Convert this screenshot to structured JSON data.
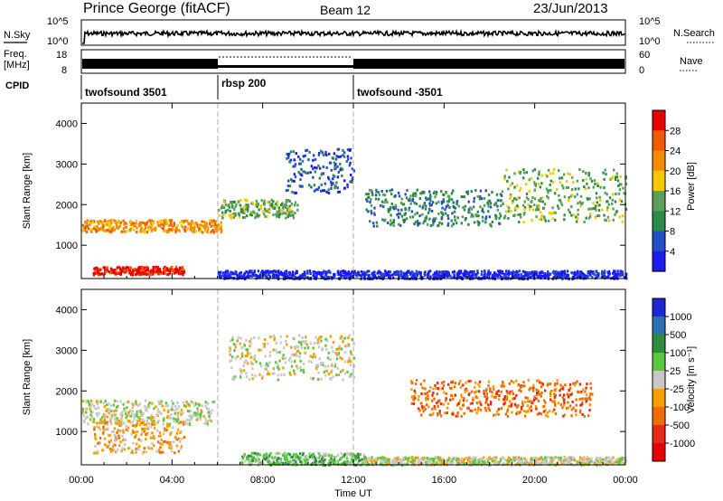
{
  "header": {
    "station": "Prince George (fitACF)",
    "beam": "Beam 12",
    "date": "23/Jun/2013"
  },
  "nsky_panel": {
    "label": "N.Sky",
    "left_ticks": [
      "10^5",
      "10^0"
    ],
    "right_ticks": [
      "10^5",
      "10^0"
    ],
    "right_label": "N.Search"
  },
  "freq_panel": {
    "label_line1": "Freq.",
    "label_line2": "[MHz]",
    "left_ticks": [
      "18",
      "8"
    ],
    "right_ticks": [
      "60",
      "0"
    ],
    "right_label": "Nave"
  },
  "cpid_panel": {
    "label": "CPID",
    "programs": [
      {
        "name": "twofsound 3501",
        "start_hour": 0
      },
      {
        "name": "rbsp 200",
        "start_hour": 6
      },
      {
        "name": "twofsound -3501",
        "start_hour": 12
      }
    ]
  },
  "chart_data": [
    {
      "type": "heatmap",
      "name": "power",
      "ylabel": "Slant Range [km]",
      "ylim": [
        180,
        4500
      ],
      "yticks": [
        "1000",
        "2000",
        "3000",
        "4000"
      ],
      "xlim_hours": [
        0,
        24
      ],
      "colorbar_label": "Power [dB]",
      "colorbar_ticks": [
        "4",
        "8",
        "12",
        "16",
        "20",
        "24",
        "28"
      ],
      "colors": [
        "#1c1cf0",
        "#2350c8",
        "#2b8a46",
        "#5aa05a",
        "#f5c800",
        "#f58c00",
        "#f05a00",
        "#e60000"
      ],
      "regions": [
        {
          "range": [
            1350,
            1650
          ],
          "hours": [
            0,
            6.2
          ],
          "level": 5
        },
        {
          "range": [
            300,
            500
          ],
          "hours": [
            0.5,
            4.5
          ],
          "level": 7
        },
        {
          "range": [
            1700,
            2150
          ],
          "hours": [
            6.0,
            9.5
          ],
          "level": 3
        },
        {
          "range": [
            2300,
            3400
          ],
          "hours": [
            9.0,
            12.0
          ],
          "level": 1
        },
        {
          "range": [
            1500,
            2400
          ],
          "hours": [
            12.5,
            18.5
          ],
          "level": 2
        },
        {
          "range": [
            1600,
            2900
          ],
          "hours": [
            18.5,
            24.0
          ],
          "level": 3
        },
        {
          "range": [
            200,
            400
          ],
          "hours": [
            6.0,
            24.0
          ],
          "level": 0
        }
      ]
    },
    {
      "type": "heatmap",
      "name": "velocity",
      "ylabel": "Slant Range [km]",
      "ylim": [
        180,
        4500
      ],
      "yticks": [
        "1000",
        "2000",
        "3000",
        "4000"
      ],
      "xlim_hours": [
        0,
        24
      ],
      "colorbar_label": "Velocity [m s⁻¹]",
      "colorbar_ticks": [
        "1000",
        "500",
        "100",
        "25",
        "-25",
        "-100",
        "-500",
        "-1000"
      ],
      "colors": [
        "#1c28d2",
        "#2d6eb4",
        "#2f8c3c",
        "#5ac83c",
        "#c8c8c8",
        "#f5a000",
        "#f06e00",
        "#e62814",
        "#e60000"
      ],
      "regions": [
        {
          "range": [
            1200,
            1800
          ],
          "hours": [
            0,
            5.8
          ],
          "level": 4
        },
        {
          "range": [
            500,
            1300
          ],
          "hours": [
            0.5,
            4.5
          ],
          "level": 5
        },
        {
          "range": [
            2300,
            3400
          ],
          "hours": [
            6.5,
            12.0
          ],
          "level": 4
        },
        {
          "range": [
            200,
            500
          ],
          "hours": [
            7.0,
            12.5
          ],
          "level": 3
        },
        {
          "range": [
            1400,
            2300
          ],
          "hours": [
            14.5,
            22.5
          ],
          "level": 6
        },
        {
          "range": [
            200,
            400
          ],
          "hours": [
            12.5,
            24.0
          ],
          "level": 4
        }
      ]
    }
  ],
  "xaxis": {
    "label": "Time UT",
    "ticks": [
      "00:00",
      "04:00",
      "08:00",
      "12:00",
      "16:00",
      "20:00",
      "00:00"
    ]
  }
}
